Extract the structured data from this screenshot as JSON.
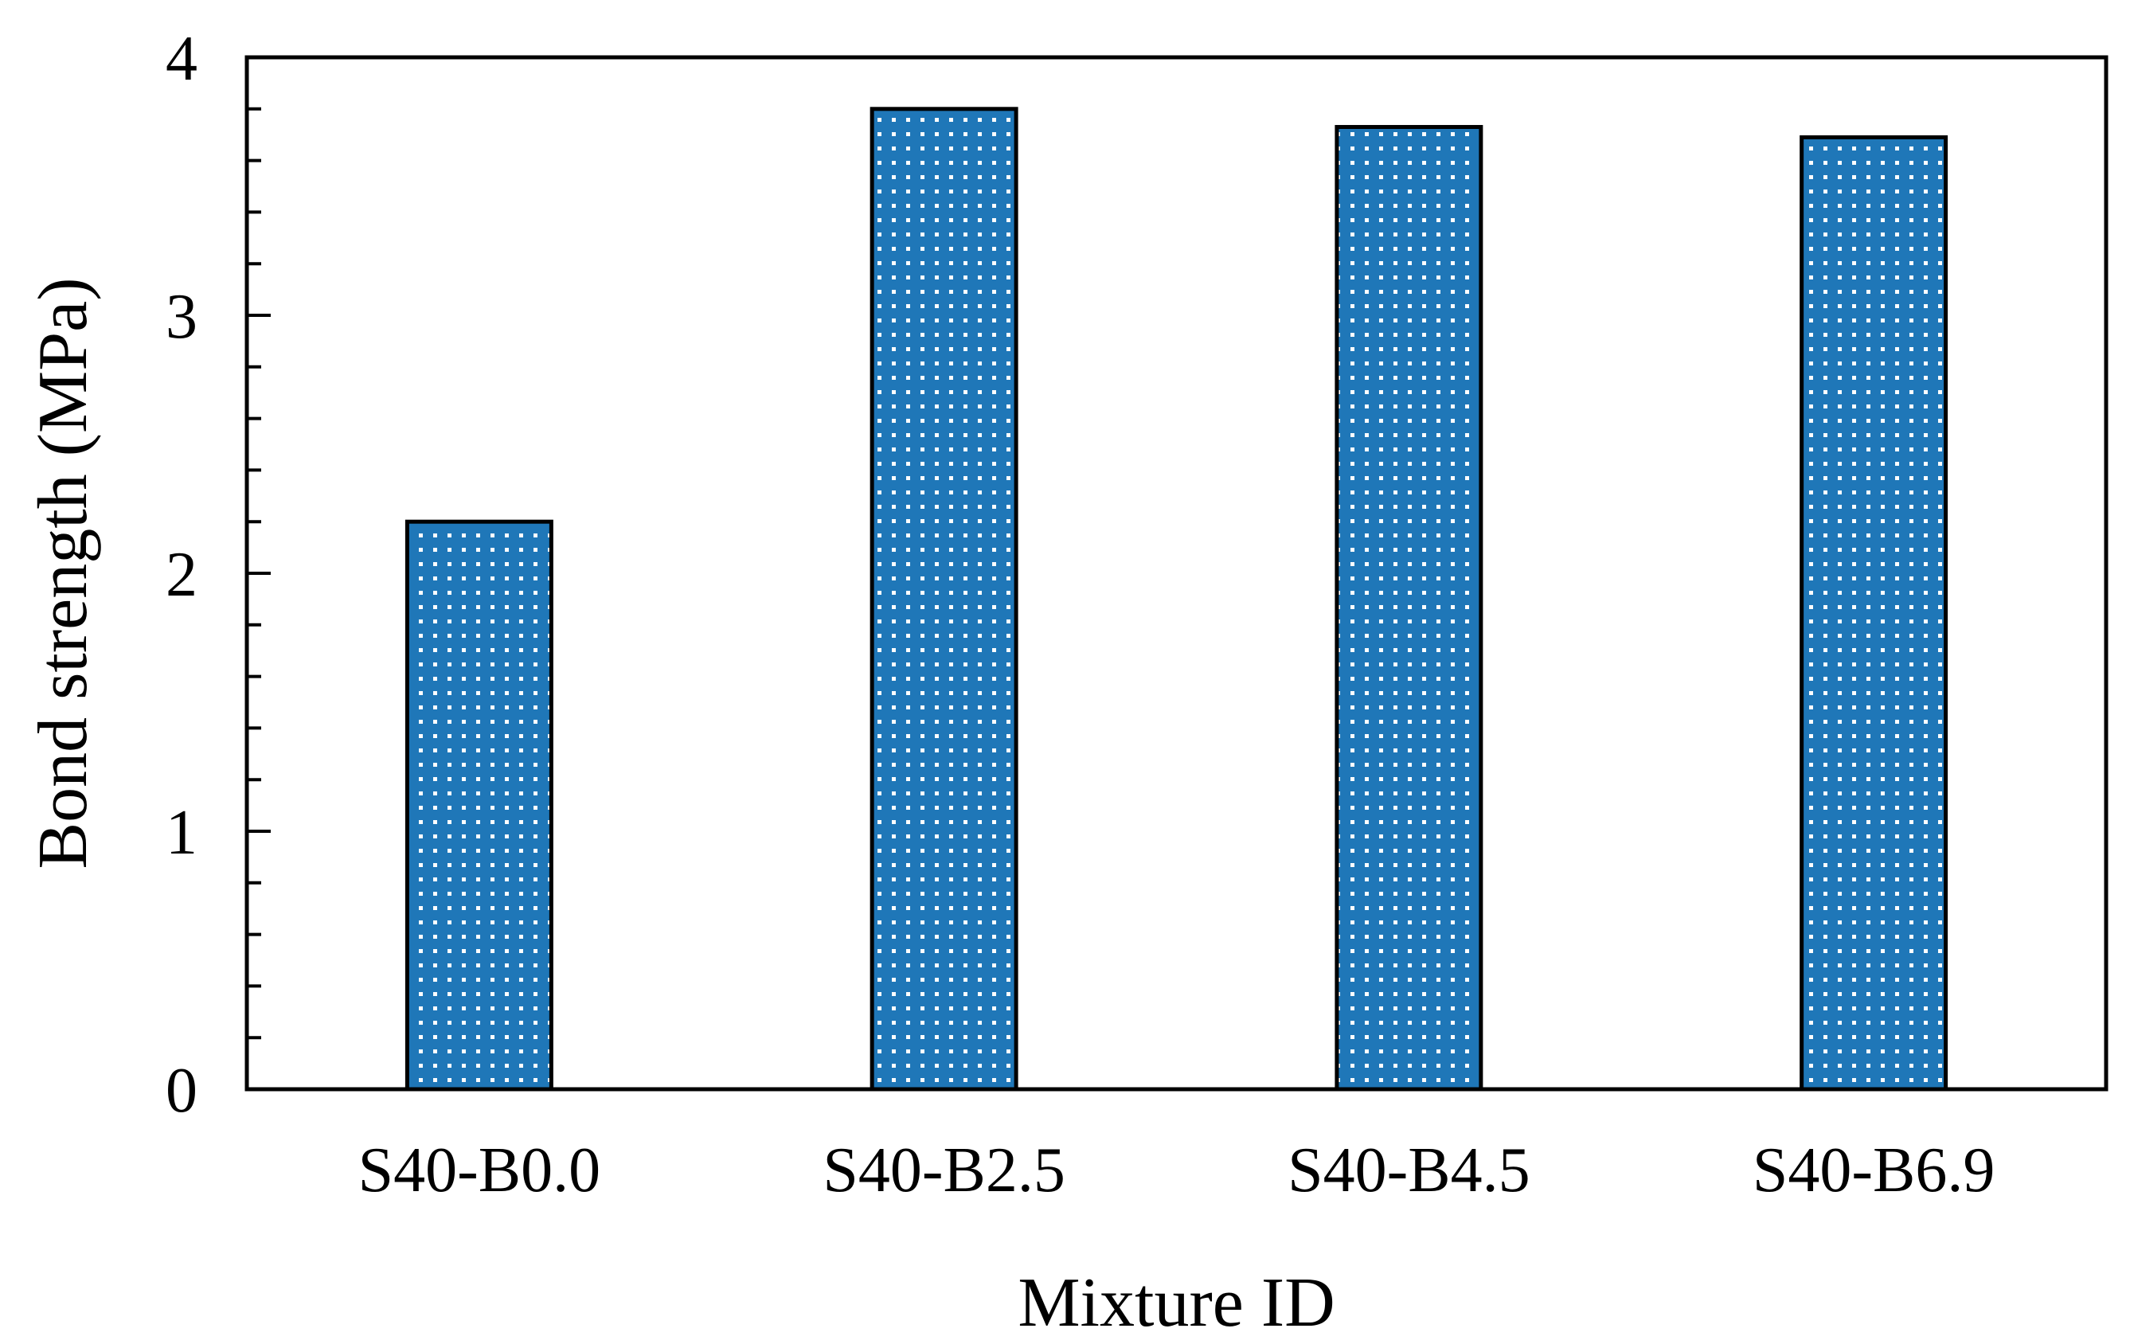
{
  "chart_data": {
    "type": "bar",
    "title": "",
    "xlabel": "Mixture ID",
    "ylabel": "Bond strength (MPa)",
    "categories": [
      "S40-B0.0",
      "S40-B2.5",
      "S40-B4.5",
      "S40-B6.9"
    ],
    "values": [
      2.2,
      3.8,
      3.73,
      3.69
    ],
    "ylim": [
      0,
      4
    ],
    "yticks": [
      "0",
      "1",
      "2",
      "3",
      "4"
    ],
    "minor_tick_step": 0.2,
    "grid": false,
    "legend": "none",
    "bar_color": "#1f77b8",
    "bar_pattern": "white dots"
  }
}
